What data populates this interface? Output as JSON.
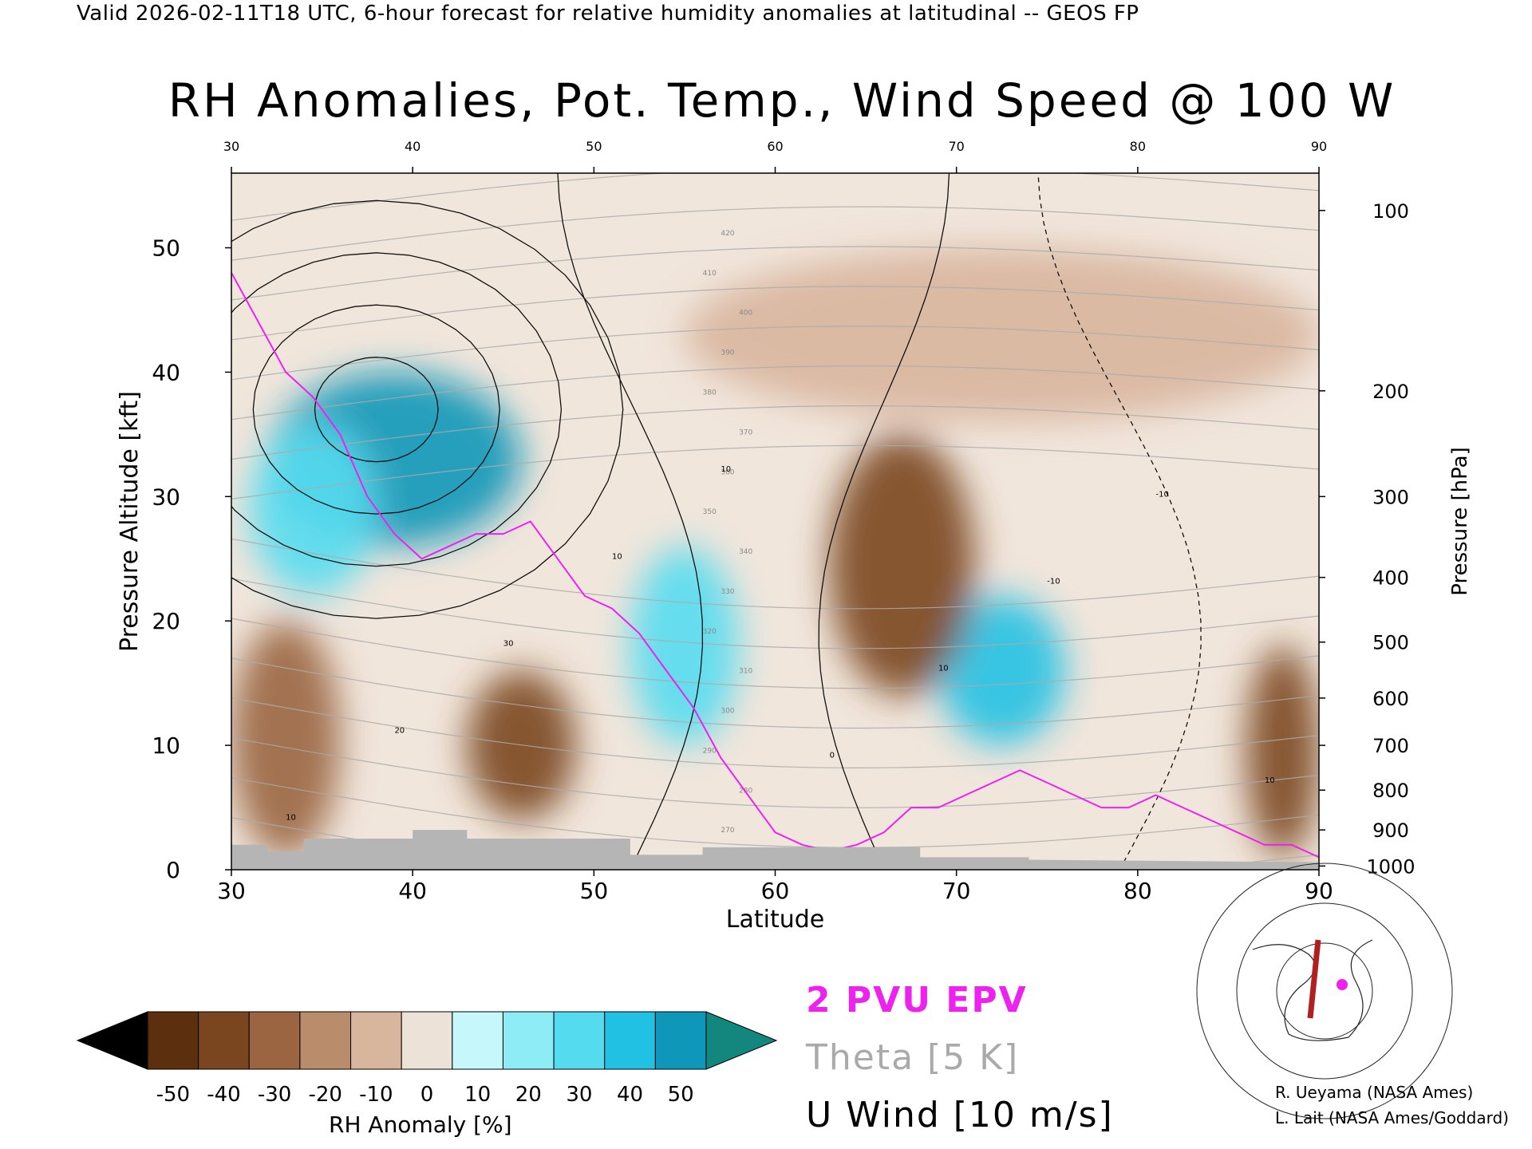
{
  "header": {
    "caption": "Valid 2026-02-11T18 UTC, 6-hour forecast for relative humidity anomalies at latitudinal -- GEOS FP",
    "title": "RH Anomalies, Pot. Temp., Wind Speed @ 100 W"
  },
  "chart_data": {
    "type": "heatmap",
    "title": "RH Anomalies, Pot. Temp., Wind Speed @ 100 W",
    "xlabel": "Latitude",
    "ylabel": "Pressure Altitude [kft]",
    "y2label": "Pressure [hPa]",
    "xlim": [
      30,
      90
    ],
    "ylim": [
      0,
      56
    ],
    "x_ticks": [
      30,
      40,
      50,
      60,
      70,
      80,
      90
    ],
    "y_ticks": [
      0,
      10,
      20,
      30,
      40,
      50
    ],
    "pressure_ticks": [
      {
        "label": "100",
        "kft": 53
      },
      {
        "label": "200",
        "kft": 38.5
      },
      {
        "label": "300",
        "kft": 30
      },
      {
        "label": "400",
        "kft": 23.5
      },
      {
        "label": "500",
        "kft": 18.3
      },
      {
        "label": "600",
        "kft": 13.8
      },
      {
        "label": "700",
        "kft": 10
      },
      {
        "label": "800",
        "kft": 6.4
      },
      {
        "label": "900",
        "kft": 3.2
      },
      {
        "label": "1000",
        "kft": 0.3
      }
    ],
    "colorbar": {
      "label": "RH Anomaly [%]",
      "tick_labels": [
        "-50",
        "-40",
        "-30",
        "-20",
        "-10",
        "0",
        "10",
        "20",
        "30",
        "40",
        "50"
      ],
      "colors": [
        "#3a1c08",
        "#5c300f",
        "#7a461f",
        "#9a6540",
        "#b98c6b",
        "#d8b59d",
        "#ede2d8",
        "#c5f7fb",
        "#8eecf6",
        "#55dbef",
        "#21c1e3",
        "#0e97b8",
        "#13867e"
      ],
      "under_color": "#000000",
      "over_color": "#13867e"
    },
    "epv_label": "2 PVU EPV",
    "epv_color": "#ee22ee",
    "theta_label": "Theta [5 K]",
    "theta_color": "#aaaaaa",
    "theta_levels": [
      260,
      270,
      280,
      290,
      300,
      310,
      320,
      330,
      340,
      350,
      360,
      370,
      380,
      390,
      400,
      410,
      420
    ],
    "wind_label": "U Wind [10 m/s]",
    "wind_contour_labels": [
      "10",
      "20",
      "30",
      "10",
      "10",
      "0",
      "10",
      "-10",
      "-10",
      "10"
    ],
    "wind_jet_core_kft": 37,
    "anomaly_regions": [
      {
        "lat": [
          32,
          46
        ],
        "kft": [
          26,
          40
        ],
        "value": 50
      },
      {
        "lat": [
          31,
          38
        ],
        "kft": [
          22,
          36
        ],
        "value": 35
      },
      {
        "lat": [
          52,
          58
        ],
        "kft": [
          10,
          26
        ],
        "value": 30
      },
      {
        "lat": [
          69,
          76
        ],
        "kft": [
          10,
          22
        ],
        "value": 40
      },
      {
        "lat": [
          63,
          71
        ],
        "kft": [
          14,
          35
        ],
        "value": -40
      },
      {
        "lat": [
          43,
          49
        ],
        "kft": [
          4,
          16
        ],
        "value": -40
      },
      {
        "lat": [
          30,
          36
        ],
        "kft": [
          1,
          20
        ],
        "value": -30
      },
      {
        "lat": [
          55,
          90
        ],
        "kft": [
          36,
          50
        ],
        "value": -10
      },
      {
        "lat": [
          86,
          90
        ],
        "kft": [
          1,
          18
        ],
        "value": -35
      }
    ]
  },
  "credits": {
    "line1": "R. Ueyama (NASA Ames)",
    "line2": "L. Lait (NASA Ames/Goddard)"
  }
}
